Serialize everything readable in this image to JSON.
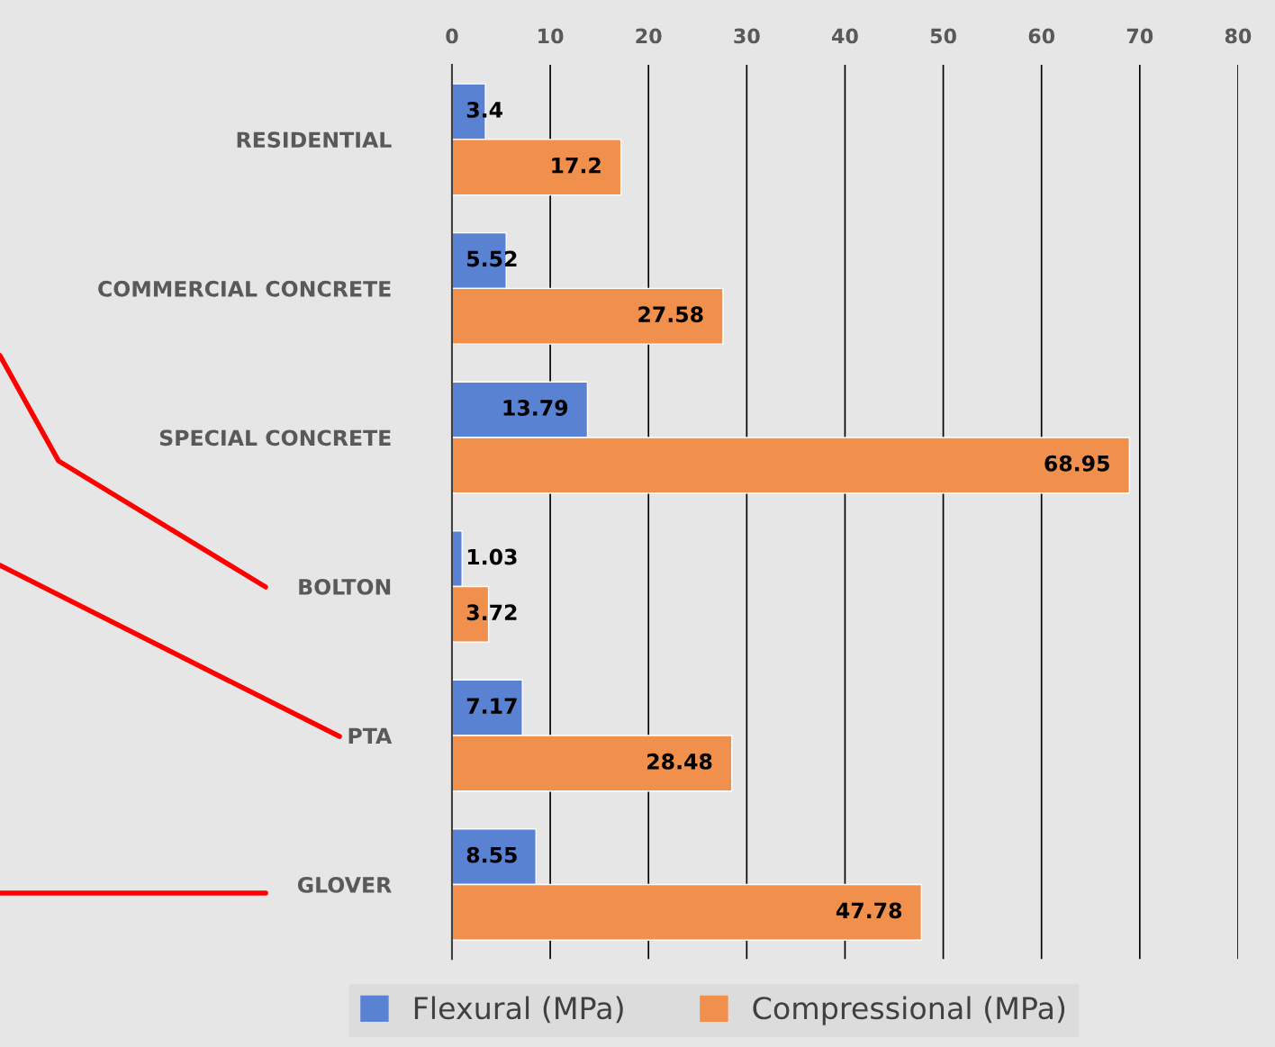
{
  "chart_data": {
    "type": "bar",
    "orientation": "horizontal",
    "categories": [
      "RESIDENTIAL",
      "COMMERCIAL CONCRETE",
      "SPECIAL CONCRETE",
      "BOLTON",
      "PTA",
      "GLOVER"
    ],
    "series": [
      {
        "name": "Flexural (MPa)",
        "color": "#5a82d2",
        "values": [
          3.4,
          5.52,
          13.79,
          1.03,
          7.17,
          8.55
        ]
      },
      {
        "name": "Compressional (MPa)",
        "color": "#f0904c",
        "values": [
          17.2,
          27.58,
          68.95,
          3.72,
          28.48,
          47.78
        ]
      }
    ],
    "xlim": [
      0,
      80
    ],
    "xticks": [
      0,
      10,
      20,
      30,
      40,
      50,
      60,
      70,
      80
    ],
    "grid": "x",
    "legend": "bottom",
    "data_labels": true
  }
}
